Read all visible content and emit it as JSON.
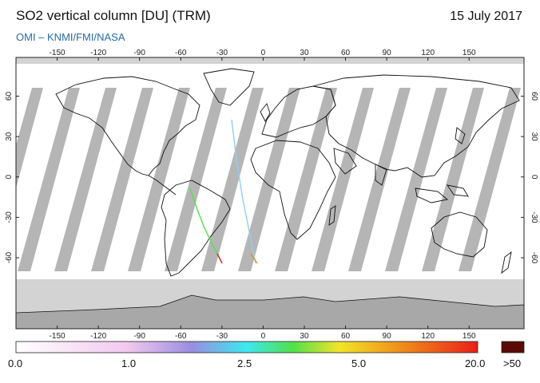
{
  "header": {
    "title": "SO2 vertical column [DU] (TRM)",
    "date": "15 July 2017",
    "subtitle": "OMI  –  KNMI/FMI/NASA"
  },
  "map": {
    "projection": "equirectangular",
    "lon_ticks": [
      "-150",
      "-120",
      "-90",
      "-60",
      "-30",
      "0",
      "30",
      "60",
      "90",
      "120",
      "150"
    ],
    "lat_ticks": [
      "60",
      "30",
      "0",
      "-30",
      "-60"
    ]
  },
  "colorbar": {
    "labels": [
      "0.0",
      "1.0",
      "2.5",
      "5.0",
      "20.0",
      ">50"
    ],
    "colors": [
      "#ffffff",
      "#f3c8f0",
      "#9a8ee0",
      "#3ce8f0",
      "#52e04a",
      "#f2e42a",
      "#f08a1a",
      "#e8201a"
    ],
    "overflow_color": "#5a0a06"
  },
  "colors": {
    "ocean_swath": "#ffffff",
    "no_data": "#d3d3d3",
    "overpass_gap": "#a8a8a8",
    "title_accent": "#2b6aa6"
  }
}
